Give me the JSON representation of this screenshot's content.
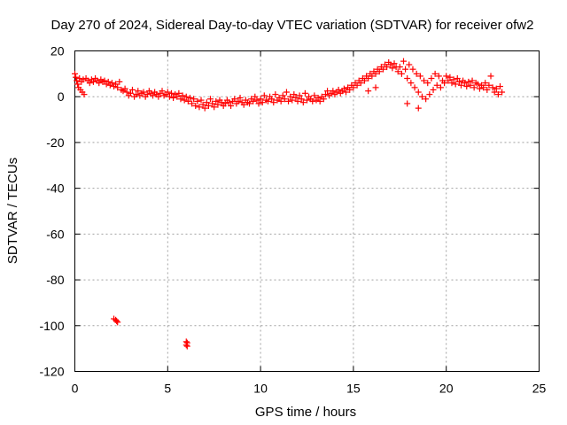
{
  "chart_data": {
    "type": "scatter",
    "title": "Day 270 of 2024, Sidereal Day-to-day VTEC variation (SDTVAR) for receiver ofw2",
    "xlabel": "GPS time / hours",
    "ylabel": "SDTVAR / TECUs",
    "xlim": [
      0,
      25
    ],
    "ylim": [
      -120,
      20
    ],
    "xticks": [
      0,
      5,
      10,
      15,
      20,
      25
    ],
    "yticks": [
      -120,
      -100,
      -80,
      -60,
      -40,
      -20,
      0,
      20
    ],
    "grid": true,
    "marker": "plus",
    "color": "#ff0000",
    "series": [
      {
        "name": "SDTVAR",
        "points": [
          [
            0.0,
            10.0
          ],
          [
            0.05,
            8.5
          ],
          [
            0.1,
            7.0
          ],
          [
            0.15,
            5.5
          ],
          [
            0.2,
            4.0
          ],
          [
            0.25,
            8.0
          ],
          [
            0.3,
            3.0
          ],
          [
            0.35,
            6.5
          ],
          [
            0.4,
            2.0
          ],
          [
            0.45,
            7.5
          ],
          [
            0.5,
            1.0
          ],
          [
            0.6,
            8.0
          ],
          [
            0.7,
            7.0
          ],
          [
            0.8,
            6.0
          ],
          [
            0.9,
            7.5
          ],
          [
            1.0,
            6.5
          ],
          [
            1.1,
            8.0
          ],
          [
            1.2,
            7.0
          ],
          [
            1.3,
            6.0
          ],
          [
            1.4,
            7.5
          ],
          [
            1.5,
            6.5
          ],
          [
            1.6,
            7.0
          ],
          [
            1.7,
            5.5
          ],
          [
            1.8,
            6.5
          ],
          [
            1.9,
            5.0
          ],
          [
            2.0,
            6.0
          ],
          [
            2.1,
            4.5
          ],
          [
            2.2,
            5.5
          ],
          [
            2.3,
            4.0
          ],
          [
            2.4,
            6.5
          ],
          [
            2.5,
            3.0
          ],
          [
            2.6,
            2.5
          ],
          [
            2.7,
            3.5
          ],
          [
            2.8,
            2.0
          ],
          [
            2.9,
            0.5
          ],
          [
            3.0,
            1.5
          ],
          [
            3.1,
            3.0
          ],
          [
            3.2,
            0.0
          ],
          [
            3.3,
            1.0
          ],
          [
            3.4,
            2.5
          ],
          [
            3.5,
            0.5
          ],
          [
            3.6,
            1.5
          ],
          [
            3.7,
            2.0
          ],
          [
            3.8,
            0.0
          ],
          [
            3.9,
            1.0
          ],
          [
            4.0,
            2.5
          ],
          [
            4.1,
            1.5
          ],
          [
            4.2,
            0.5
          ],
          [
            4.3,
            2.0
          ],
          [
            4.4,
            1.0
          ],
          [
            4.5,
            0.0
          ],
          [
            4.6,
            1.5
          ],
          [
            4.7,
            2.5
          ],
          [
            4.8,
            0.5
          ],
          [
            4.9,
            1.0
          ],
          [
            5.0,
            2.0
          ],
          [
            5.1,
            0.0
          ],
          [
            5.2,
            1.5
          ],
          [
            5.3,
            -0.5
          ],
          [
            5.4,
            1.0
          ],
          [
            5.5,
            0.0
          ],
          [
            5.6,
            1.5
          ],
          [
            5.7,
            -1.0
          ],
          [
            5.8,
            0.5
          ],
          [
            5.9,
            -1.5
          ],
          [
            6.0,
            0.0
          ],
          [
            6.1,
            -2.0
          ],
          [
            6.2,
            -0.5
          ],
          [
            6.3,
            -3.0
          ],
          [
            6.4,
            -1.0
          ],
          [
            6.5,
            -4.0
          ],
          [
            6.6,
            -2.0
          ],
          [
            6.7,
            -4.5
          ],
          [
            6.8,
            -1.5
          ],
          [
            6.9,
            -3.5
          ],
          [
            7.0,
            -5.0
          ],
          [
            7.1,
            -2.5
          ],
          [
            7.2,
            -4.0
          ],
          [
            7.3,
            -1.0
          ],
          [
            7.4,
            -3.0
          ],
          [
            7.5,
            -4.5
          ],
          [
            7.6,
            -2.0
          ],
          [
            7.7,
            -3.5
          ],
          [
            7.8,
            -1.5
          ],
          [
            7.9,
            -2.5
          ],
          [
            8.0,
            -4.0
          ],
          [
            8.1,
            -3.0
          ],
          [
            8.2,
            -1.5
          ],
          [
            8.3,
            -2.5
          ],
          [
            8.4,
            -4.0
          ],
          [
            8.5,
            -2.0
          ],
          [
            8.6,
            -1.0
          ],
          [
            8.7,
            -3.0
          ],
          [
            8.8,
            -2.0
          ],
          [
            8.9,
            -0.5
          ],
          [
            9.0,
            -2.5
          ],
          [
            9.1,
            -3.5
          ],
          [
            9.2,
            -1.5
          ],
          [
            9.3,
            -2.5
          ],
          [
            9.4,
            -3.0
          ],
          [
            9.5,
            -1.0
          ],
          [
            9.6,
            -2.0
          ],
          [
            9.7,
            0.0
          ],
          [
            9.8,
            -1.5
          ],
          [
            9.9,
            -3.0
          ],
          [
            10.0,
            -1.0
          ],
          [
            10.1,
            -2.5
          ],
          [
            10.2,
            0.5
          ],
          [
            10.3,
            -1.5
          ],
          [
            10.4,
            -2.0
          ],
          [
            10.5,
            0.0
          ],
          [
            10.6,
            -1.0
          ],
          [
            10.7,
            -2.5
          ],
          [
            10.8,
            1.0
          ],
          [
            10.9,
            -1.5
          ],
          [
            11.0,
            -0.5
          ],
          [
            11.1,
            -2.0
          ],
          [
            11.2,
            0.5
          ],
          [
            11.3,
            -1.0
          ],
          [
            11.4,
            2.0
          ],
          [
            11.5,
            -2.0
          ],
          [
            11.6,
            0.0
          ],
          [
            11.7,
            -1.5
          ],
          [
            11.8,
            1.0
          ],
          [
            11.9,
            -0.5
          ],
          [
            12.0,
            -2.0
          ],
          [
            12.1,
            0.5
          ],
          [
            12.2,
            -1.0
          ],
          [
            12.3,
            -2.5
          ],
          [
            12.4,
            1.5
          ],
          [
            12.5,
            -1.5
          ],
          [
            12.6,
            0.0
          ],
          [
            12.7,
            -1.0
          ],
          [
            12.8,
            -2.0
          ],
          [
            12.9,
            0.5
          ],
          [
            13.0,
            -1.5
          ],
          [
            13.1,
            -0.5
          ],
          [
            13.2,
            -2.0
          ],
          [
            13.3,
            0.0
          ],
          [
            13.4,
            -1.0
          ],
          [
            13.5,
            1.0
          ],
          [
            13.6,
            2.5
          ],
          [
            13.7,
            0.5
          ],
          [
            13.8,
            1.5
          ],
          [
            13.9,
            2.5
          ],
          [
            14.0,
            1.0
          ],
          [
            14.1,
            2.0
          ],
          [
            14.2,
            3.0
          ],
          [
            14.3,
            1.5
          ],
          [
            14.4,
            2.5
          ],
          [
            14.5,
            3.5
          ],
          [
            14.6,
            2.0
          ],
          [
            14.7,
            4.0
          ],
          [
            14.8,
            3.0
          ],
          [
            14.9,
            5.0
          ],
          [
            15.0,
            4.0
          ],
          [
            15.1,
            6.0
          ],
          [
            15.2,
            5.0
          ],
          [
            15.3,
            7.0
          ],
          [
            15.4,
            6.0
          ],
          [
            15.5,
            8.0
          ],
          [
            15.6,
            7.0
          ],
          [
            15.7,
            9.0
          ],
          [
            15.8,
            8.0
          ],
          [
            15.9,
            10.0
          ],
          [
            16.0,
            9.0
          ],
          [
            16.1,
            11.0
          ],
          [
            16.2,
            10.0
          ],
          [
            16.3,
            12.0
          ],
          [
            16.4,
            11.0
          ],
          [
            16.5,
            13.0
          ],
          [
            16.6,
            12.0
          ],
          [
            16.7,
            14.0
          ],
          [
            16.8,
            13.0
          ],
          [
            16.9,
            15.0
          ],
          [
            17.0,
            14.0
          ],
          [
            17.1,
            12.5
          ],
          [
            17.2,
            14.5
          ],
          [
            17.3,
            13.0
          ],
          [
            17.4,
            11.0
          ],
          [
            17.5,
            13.0
          ],
          [
            17.6,
            10.0
          ],
          [
            17.7,
            15.5
          ],
          [
            17.8,
            12.0
          ],
          [
            17.9,
            8.0
          ],
          [
            18.0,
            14.0
          ],
          [
            18.1,
            6.0
          ],
          [
            18.2,
            12.0
          ],
          [
            18.3,
            4.0
          ],
          [
            18.4,
            10.0
          ],
          [
            18.5,
            2.0
          ],
          [
            18.6,
            9.0
          ],
          [
            18.7,
            0.0
          ],
          [
            18.8,
            7.0
          ],
          [
            18.9,
            -1.0
          ],
          [
            19.0,
            6.0
          ],
          [
            19.1,
            1.0
          ],
          [
            19.2,
            8.0
          ],
          [
            19.3,
            3.0
          ],
          [
            19.4,
            10.0
          ],
          [
            19.5,
            5.0
          ],
          [
            19.6,
            9.0
          ],
          [
            19.7,
            4.0
          ],
          [
            19.8,
            7.0
          ],
          [
            19.9,
            6.0
          ],
          [
            20.0,
            9.0
          ],
          [
            20.1,
            7.0
          ],
          [
            20.2,
            8.5
          ],
          [
            20.3,
            6.0
          ],
          [
            20.4,
            7.5
          ],
          [
            20.5,
            5.5
          ],
          [
            20.6,
            8.0
          ],
          [
            20.7,
            6.5
          ],
          [
            20.8,
            5.0
          ],
          [
            20.9,
            7.0
          ],
          [
            21.0,
            6.0
          ],
          [
            21.1,
            4.5
          ],
          [
            21.2,
            6.5
          ],
          [
            21.3,
            5.0
          ],
          [
            21.4,
            7.0
          ],
          [
            21.5,
            4.0
          ],
          [
            21.6,
            6.0
          ],
          [
            21.7,
            5.5
          ],
          [
            21.8,
            3.5
          ],
          [
            21.9,
            5.0
          ],
          [
            22.0,
            4.0
          ],
          [
            22.1,
            6.0
          ],
          [
            22.2,
            3.0
          ],
          [
            22.3,
            5.0
          ],
          [
            22.4,
            9.0
          ],
          [
            22.5,
            4.0
          ],
          [
            22.6,
            2.0
          ],
          [
            22.7,
            3.5
          ],
          [
            22.8,
            1.0
          ],
          [
            22.9,
            4.5
          ],
          [
            18.5,
            -5.0
          ],
          [
            17.9,
            -3.0
          ],
          [
            16.2,
            4.0
          ],
          [
            15.8,
            2.5
          ],
          [
            23.0,
            2.0
          ],
          [
            2.1,
            -97.0
          ],
          [
            2.2,
            -97.5
          ],
          [
            2.25,
            -98.0
          ],
          [
            2.3,
            -98.5
          ],
          [
            6.0,
            -107.0
          ],
          [
            6.05,
            -107.5
          ],
          [
            6.0,
            -108.5
          ],
          [
            6.05,
            -109.0
          ]
        ]
      }
    ]
  }
}
